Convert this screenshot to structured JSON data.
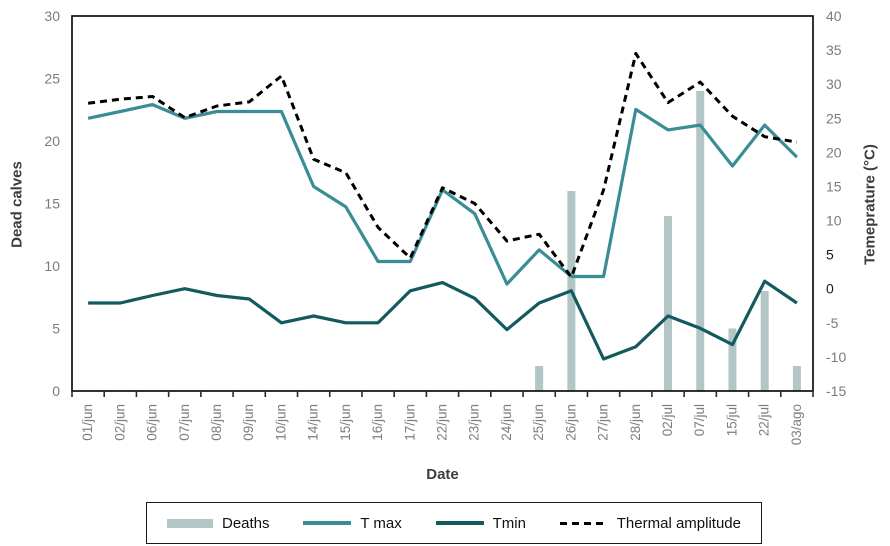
{
  "figure": {
    "x_axis_title": "Date",
    "left_axis_title": "Dead calves",
    "right_axis_title": "Temeprature (°C)"
  },
  "legend": {
    "items": [
      {
        "label": "Deaths",
        "swatch": "bar-swatch"
      },
      {
        "label": "T max",
        "swatch": "line-swatch"
      },
      {
        "label": "Tmin",
        "swatch": "line-swatch"
      },
      {
        "label": "Thermal amplitude",
        "swatch": "dashed-line-swatch"
      }
    ]
  },
  "chart_data": {
    "type": "combo",
    "title": "",
    "xlabel": "Date",
    "ylabel_left": "Dead calves",
    "ylabel_right": "Temeprature (°C)",
    "ylim_left": [
      0,
      30
    ],
    "ylim_right": [
      -15,
      40
    ],
    "tick_step": 5,
    "right_axis_dark_tick_labels": [
      5,
      0
    ],
    "grid": false,
    "legend_position": "bottom",
    "categories": [
      "01/jun",
      "02/jun",
      "06/jun",
      "07/jun",
      "08/jun",
      "09/jun",
      "10/jun",
      "14/jun",
      "15/jun",
      "16/jun",
      "17/jun",
      "22/jun",
      "23/jun",
      "24/jun",
      "25/jun",
      "26/jun",
      "27/jun",
      "28/jun",
      "02/jul",
      "07/jul",
      "15/jul",
      "22/jul",
      "03/ago"
    ],
    "series": [
      {
        "name": "Deaths",
        "type": "bar",
        "axis": "left",
        "color": "#b2c6c6",
        "values": [
          0,
          0,
          0,
          0,
          0,
          0,
          0,
          0,
          0,
          0,
          0,
          0,
          0,
          0,
          2,
          16,
          0,
          0,
          14,
          24,
          5,
          8,
          2
        ]
      },
      {
        "name": "T max",
        "type": "line",
        "axis": "right",
        "color": "#3a8d94",
        "dashed": false,
        "values": [
          25,
          26,
          27,
          25,
          26,
          26,
          26,
          15,
          12,
          4,
          4,
          14.5,
          11,
          0.7,
          5.7,
          1.8,
          1.8,
          26.3,
          23.3,
          24,
          18,
          24,
          19.3
        ]
      },
      {
        "name": "Tmin",
        "type": "line",
        "axis": "right",
        "color": "#135a5e",
        "dashed": false,
        "values": [
          -2.1,
          -2.1,
          -1,
          0,
          -1,
          -1.5,
          -5,
          -4,
          -5,
          -5,
          -0.3,
          0.9,
          -1.4,
          -6,
          -2.1,
          -0.3,
          -10.3,
          -8.5,
          -4,
          -5.8,
          -8.2,
          1.1,
          -2.1
        ]
      },
      {
        "name": "Thermal amplitude",
        "type": "line",
        "axis": "right",
        "color": "#000000",
        "dashed": true,
        "values": [
          27.2,
          27.8,
          28.2,
          25.1,
          26.8,
          27.4,
          31.2,
          19,
          17,
          9,
          4.5,
          14.8,
          12.5,
          7,
          8,
          1.7,
          14.5,
          34.5,
          27.3,
          30.3,
          25.3,
          22.3,
          21.5
        ]
      }
    ]
  }
}
